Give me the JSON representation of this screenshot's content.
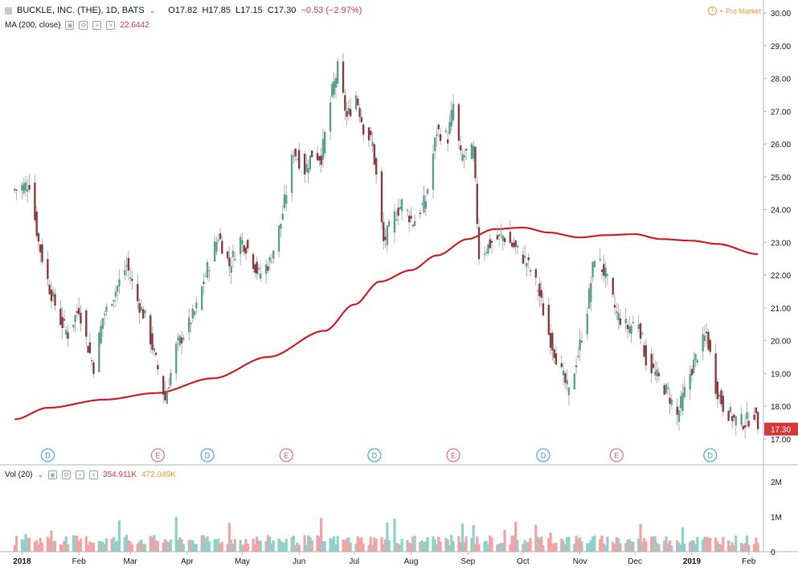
{
  "header": {
    "symbol_title": "BUCKLE, INC. (THE), 1D, BATS",
    "open": "O17.82",
    "high": "H17.85",
    "low": "L17.15",
    "close": "C17.30",
    "change": "−0.53 (−2.97%)",
    "pre_market": "Pre Market"
  },
  "ma_indicator": {
    "label": "MA (200, close)",
    "value": "22.6442"
  },
  "vol_indicator": {
    "label": "Vol (20)",
    "value_a": "354.911K",
    "value_b": "472.049K"
  },
  "last_price_tag": "17.30",
  "colors": {
    "up": "#5ba091",
    "down": "#8a3d3d",
    "ma": "#d0202a",
    "vol_up": "#8fd1c8",
    "vol_down": "#f3a3a3",
    "accent": "#f4962f"
  },
  "icons": [
    "flag-icon",
    "chevron-down-icon",
    "eye-icon",
    "settings-icon",
    "add-icon",
    "close-icon",
    "info-icon"
  ],
  "chart_data": {
    "type": "candlestick",
    "price_axis": {
      "ticks": [
        "30.00",
        "29.00",
        "28.00",
        "27.00",
        "26.00",
        "25.00",
        "24.00",
        "23.00",
        "22.00",
        "21.00",
        "20.00",
        "19.00",
        "18.00",
        "17.00"
      ],
      "ylim": [
        16.7,
        30.2
      ]
    },
    "volume_axis": {
      "ticks": [
        "2M",
        "1M",
        "0"
      ],
      "ylim": [
        0,
        2300000
      ]
    },
    "time_axis": [
      "2018",
      "Feb",
      "Mar",
      "Apr",
      "May",
      "Jun",
      "Jul",
      "Aug",
      "Sep",
      "Oct",
      "Nov",
      "Dec",
      "2019",
      "Feb"
    ],
    "event_markers": [
      {
        "label": "D",
        "date": "2018-01-15"
      },
      {
        "label": "E",
        "date": "2018-03-16"
      },
      {
        "label": "D",
        "date": "2018-04-12"
      },
      {
        "label": "E",
        "date": "2018-05-25"
      },
      {
        "label": "D",
        "date": "2018-07-12"
      },
      {
        "label": "E",
        "date": "2018-08-24"
      },
      {
        "label": "D",
        "date": "2018-10-12"
      },
      {
        "label": "E",
        "date": "2018-11-21"
      },
      {
        "label": "D",
        "date": "2019-01-11"
      }
    ],
    "close_anchors": [
      [
        "2017-12-28",
        24.6
      ],
      [
        "2018-01-05",
        24.8
      ],
      [
        "2018-01-10",
        23.0
      ],
      [
        "2018-01-16",
        21.6
      ],
      [
        "2018-01-22",
        20.6
      ],
      [
        "2018-01-26",
        20.2
      ],
      [
        "2018-02-01",
        21.0
      ],
      [
        "2018-02-06",
        19.8
      ],
      [
        "2018-02-09",
        19.2
      ],
      [
        "2018-02-14",
        20.7
      ],
      [
        "2018-02-20",
        21.4
      ],
      [
        "2018-02-27",
        22.3
      ],
      [
        "2018-03-05",
        21.2
      ],
      [
        "2018-03-09",
        20.7
      ],
      [
        "2018-03-14",
        19.6
      ],
      [
        "2018-03-20",
        18.2
      ],
      [
        "2018-03-26",
        19.8
      ],
      [
        "2018-04-02",
        20.5
      ],
      [
        "2018-04-06",
        21.0
      ],
      [
        "2018-04-12",
        22.2
      ],
      [
        "2018-04-18",
        23.2
      ],
      [
        "2018-04-24",
        22.3
      ],
      [
        "2018-04-30",
        23.1
      ],
      [
        "2018-05-04",
        22.8
      ],
      [
        "2018-05-10",
        22.0
      ],
      [
        "2018-05-16",
        22.4
      ],
      [
        "2018-05-22",
        23.6
      ],
      [
        "2018-05-29",
        25.8
      ],
      [
        "2018-06-04",
        25.2
      ],
      [
        "2018-06-08",
        25.7
      ],
      [
        "2018-06-13",
        25.6
      ],
      [
        "2018-06-19",
        27.6
      ],
      [
        "2018-06-22",
        28.3
      ],
      [
        "2018-06-27",
        26.8
      ],
      [
        "2018-07-02",
        27.5
      ],
      [
        "2018-07-06",
        26.5
      ],
      [
        "2018-07-11",
        26.0
      ],
      [
        "2018-07-13",
        25.0
      ],
      [
        "2018-07-17",
        23.0
      ],
      [
        "2018-07-23",
        23.8
      ],
      [
        "2018-07-27",
        24.2
      ],
      [
        "2018-08-02",
        23.6
      ],
      [
        "2018-08-09",
        24.3
      ],
      [
        "2018-08-15",
        26.4
      ],
      [
        "2018-08-21",
        26.2
      ],
      [
        "2018-08-24",
        27.2
      ],
      [
        "2018-08-28",
        25.6
      ],
      [
        "2018-09-04",
        25.8
      ],
      [
        "2018-09-07",
        22.6
      ],
      [
        "2018-09-14",
        23.0
      ],
      [
        "2018-09-20",
        23.2
      ],
      [
        "2018-09-27",
        22.8
      ],
      [
        "2018-10-03",
        22.4
      ],
      [
        "2018-10-09",
        21.6
      ],
      [
        "2018-10-15",
        20.2
      ],
      [
        "2018-10-22",
        19.0
      ],
      [
        "2018-10-26",
        18.4
      ],
      [
        "2018-10-31",
        19.6
      ],
      [
        "2018-11-05",
        21.0
      ],
      [
        "2018-11-09",
        22.6
      ],
      [
        "2018-11-15",
        22.0
      ],
      [
        "2018-11-21",
        20.8
      ],
      [
        "2018-11-27",
        20.4
      ],
      [
        "2018-12-03",
        20.6
      ],
      [
        "2018-12-07",
        19.4
      ],
      [
        "2018-12-13",
        18.9
      ],
      [
        "2018-12-19",
        18.4
      ],
      [
        "2018-12-24",
        17.7
      ],
      [
        "2018-12-31",
        19.0
      ],
      [
        "2019-01-04",
        19.6
      ],
      [
        "2019-01-09",
        20.2
      ],
      [
        "2019-01-14",
        18.6
      ],
      [
        "2019-01-18",
        18.0
      ],
      [
        "2019-01-24",
        17.6
      ],
      [
        "2019-01-30",
        17.5
      ],
      [
        "2019-02-04",
        17.8
      ],
      [
        "2019-02-06",
        17.3
      ]
    ],
    "ma200_anchors": [
      [
        "2017-12-28",
        17.6
      ],
      [
        "2018-01-15",
        17.95
      ],
      [
        "2018-02-15",
        18.2
      ],
      [
        "2018-03-15",
        18.4
      ],
      [
        "2018-04-15",
        18.85
      ],
      [
        "2018-05-15",
        19.5
      ],
      [
        "2018-06-15",
        20.3
      ],
      [
        "2018-07-01",
        21.1
      ],
      [
        "2018-07-15",
        21.8
      ],
      [
        "2018-08-01",
        22.15
      ],
      [
        "2018-08-15",
        22.6
      ],
      [
        "2018-09-01",
        23.1
      ],
      [
        "2018-09-15",
        23.4
      ],
      [
        "2018-10-01",
        23.45
      ],
      [
        "2018-10-15",
        23.3
      ],
      [
        "2018-11-01",
        23.15
      ],
      [
        "2018-11-15",
        23.22
      ],
      [
        "2018-12-01",
        23.25
      ],
      [
        "2018-12-15",
        23.1
      ],
      [
        "2019-01-01",
        23.05
      ],
      [
        "2019-01-15",
        22.95
      ],
      [
        "2019-02-06",
        22.64
      ]
    ],
    "volume_level_k": 330
  }
}
